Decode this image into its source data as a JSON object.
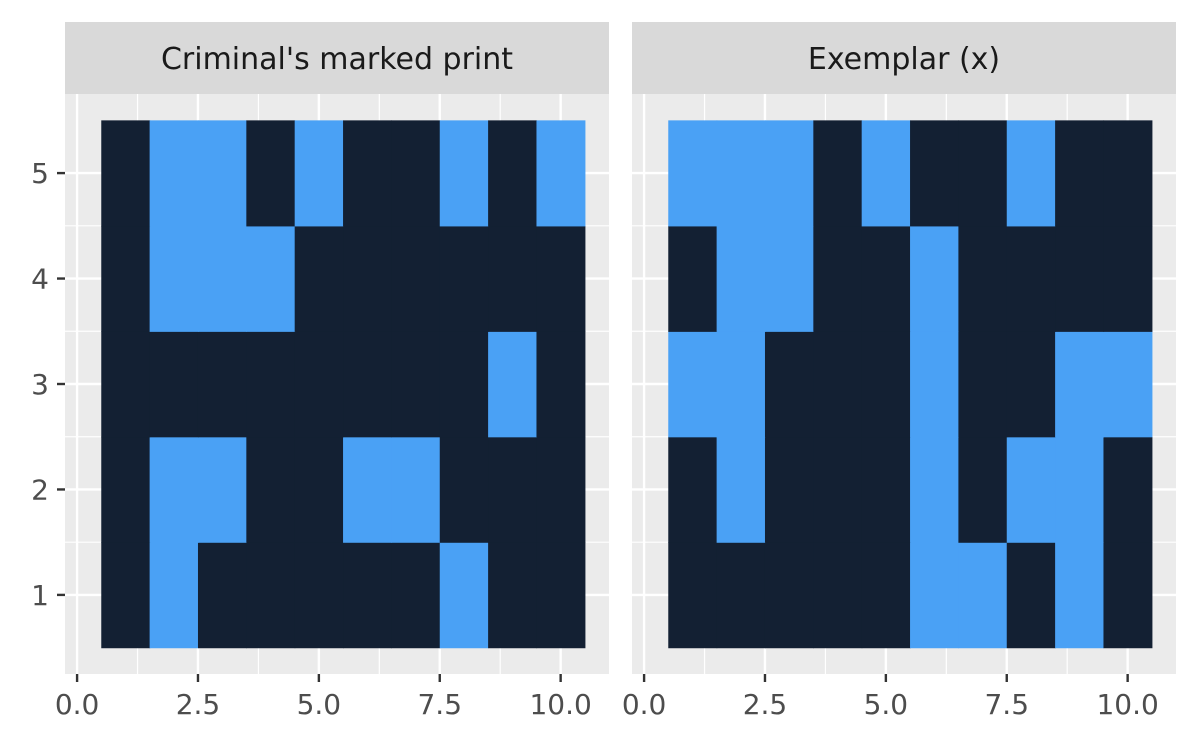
{
  "colors": {
    "low": "#132033",
    "high": "#4aa1f5",
    "panel_bg": "#ebebeb",
    "strip_bg": "#d9d9d9",
    "grid": "#ffffff",
    "axis_text": "#4d4d4d",
    "strip_text": "#1a1a1a"
  },
  "chart_data": {
    "type": "heatmap",
    "xlim": [
      0,
      10.5
    ],
    "ylim": [
      0.5,
      5.5
    ],
    "x_ticks": [
      "0.0",
      "2.5",
      "5.0",
      "7.5",
      "10.0"
    ],
    "x_tick_values": [
      0,
      2.5,
      5,
      7.5,
      10
    ],
    "y_ticks": [
      "1",
      "2",
      "3",
      "4",
      "5"
    ],
    "y_tick_values": [
      1,
      2,
      3,
      4,
      5
    ],
    "grid": true,
    "legend": "none",
    "panels": [
      {
        "strip": "Criminal's marked print",
        "x": [
          1,
          2,
          3,
          4,
          5,
          6,
          7,
          8,
          9,
          10
        ],
        "y": [
          1,
          2,
          3,
          4,
          5
        ],
        "values": [
          [
            0,
            1,
            0,
            0,
            0,
            0,
            0,
            1,
            0,
            0
          ],
          [
            0,
            1,
            1,
            0,
            0,
            1,
            1,
            0,
            0,
            0
          ],
          [
            0,
            0,
            0,
            0,
            0,
            0,
            0,
            0,
            1,
            0
          ],
          [
            0,
            1,
            1,
            1,
            0,
            0,
            0,
            0,
            0,
            0
          ],
          [
            0,
            1,
            1,
            0,
            1,
            0,
            0,
            1,
            0,
            1
          ]
        ]
      },
      {
        "strip": "Exemplar (x)",
        "x": [
          1,
          2,
          3,
          4,
          5,
          6,
          7,
          8,
          9,
          10
        ],
        "y": [
          1,
          2,
          3,
          4,
          5
        ],
        "values": [
          [
            0,
            0,
            0,
            0,
            0,
            1,
            1,
            0,
            1,
            0
          ],
          [
            0,
            1,
            0,
            0,
            0,
            1,
            0,
            1,
            1,
            0
          ],
          [
            1,
            1,
            0,
            0,
            0,
            1,
            0,
            0,
            1,
            1
          ],
          [
            0,
            1,
            1,
            0,
            0,
            1,
            0,
            0,
            0,
            0
          ],
          [
            1,
            1,
            1,
            0,
            1,
            0,
            0,
            1,
            0,
            0
          ]
        ]
      }
    ]
  }
}
